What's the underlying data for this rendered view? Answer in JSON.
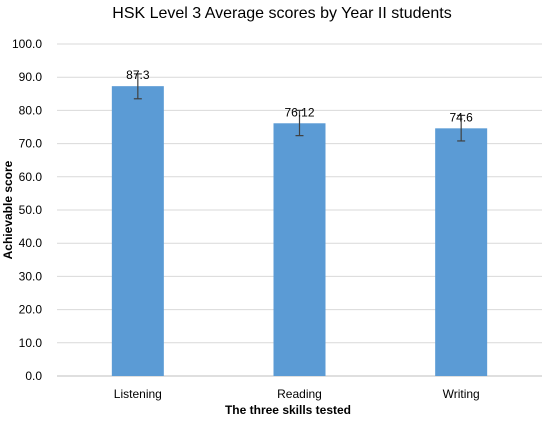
{
  "chart_data": {
    "type": "bar",
    "title": "HSK Level 3 Average scores by Year II students",
    "xlabel": "The three skills tested",
    "ylabel": "Achievable score",
    "categories": [
      "Listening",
      "Reading",
      "Writing"
    ],
    "values": [
      87.3,
      76.12,
      74.6
    ],
    "data_labels": [
      "87.3",
      "76.12",
      "74.6"
    ],
    "error_bars": [
      {
        "low": 83.5,
        "high": 91.0
      },
      {
        "low": 72.4,
        "high": 80.0
      },
      {
        "low": 70.8,
        "high": 78.5
      }
    ],
    "ylim": [
      0,
      100
    ],
    "yticks": [
      0,
      10,
      20,
      30,
      40,
      50,
      60,
      70,
      80,
      90,
      100
    ],
    "ytick_labels": [
      "0.0",
      "10.0",
      "20.0",
      "30.0",
      "40.0",
      "50.0",
      "60.0",
      "70.0",
      "80.0",
      "90.0",
      "100.0"
    ],
    "grid": true,
    "bar_color": "#5b9bd5",
    "error_bar_color": "#404040",
    "grid_color": "#d9d9d9"
  }
}
